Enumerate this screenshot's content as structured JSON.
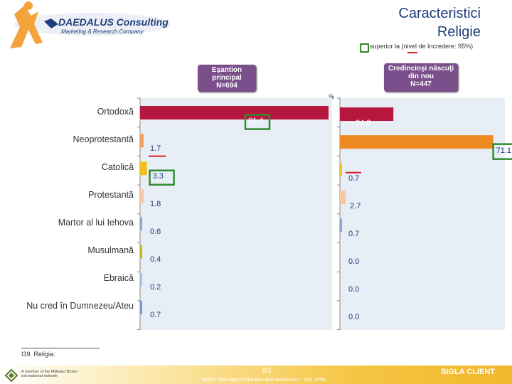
{
  "header": {
    "logo_name": "DAEDALUS Consulting",
    "logo_tagline": "Marketing & Research Company",
    "title_line1": "Caracteristici",
    "title_line2": "Religie",
    "legend_text": "superior la  (nivel de încredere: 95%)",
    "legend_colors": {
      "box": "#2e8b2e",
      "line": "#d81e2a"
    }
  },
  "panels": {
    "left": {
      "line1": "Eşantion",
      "line2": "principal",
      "line3": "N=694"
    },
    "right": {
      "line1": "Credincioşi născuţi",
      "line2": "din nou",
      "line3": "N=447"
    }
  },
  "chart_data": {
    "type": "bar",
    "orientation": "horizontal",
    "unit": "%",
    "categories": [
      "Ortodoxă",
      "Neoprotestantă",
      "Catolică",
      "Protestantă",
      "Martor al lui Iehova",
      "Musulmană",
      "Ebraică",
      "Nu cred în Dumnezeu/Ateu"
    ],
    "series": [
      {
        "values": [
          91.4,
          1.7,
          3.3,
          1.8,
          0.6,
          0.4,
          0.2,
          0.7
        ],
        "labels": [
          "91.4",
          "1.7",
          "3.3",
          "1.8",
          "0.6",
          "0.4",
          "0.2",
          "0.7"
        ]
      },
      {
        "values": [
          24.8,
          71.1,
          0.7,
          2.7,
          0.7,
          0.0,
          0.0,
          0.0
        ],
        "labels": [
          "24.8",
          "71.1",
          "0.7",
          "2.7",
          "0.7",
          "0.0",
          "0.0",
          "0.0"
        ]
      }
    ],
    "bar_colors": [
      "#b5173e",
      "#f0a060",
      "#f2c01e",
      "#f5c8a8",
      "#8ea8d0",
      "#c8b820",
      "#a8c4e4",
      "#7e96c8"
    ],
    "right_bar_colors": [
      "#b5173e",
      "#ee8a22",
      "#f2c01e",
      "#f5c8a8",
      "#8ea8d0",
      "#c8b820",
      "#a8c4e4",
      "#7e96c8"
    ],
    "significance": {
      "left_higher": [
        0,
        2
      ],
      "left_lower": [
        1
      ],
      "right_higher": [
        1
      ],
      "right_lower": [
        2
      ]
    },
    "panel_bg": "#e8eef6"
  },
  "footnote": "I39. Religia:",
  "footer": {
    "page_number": "83",
    "study_text": "BIGO Teenagers Attitudes and Behaviour - Oct 2006",
    "brand": "SIGLA CLIENT",
    "org_text": "A member of the Millward Brown international network"
  }
}
